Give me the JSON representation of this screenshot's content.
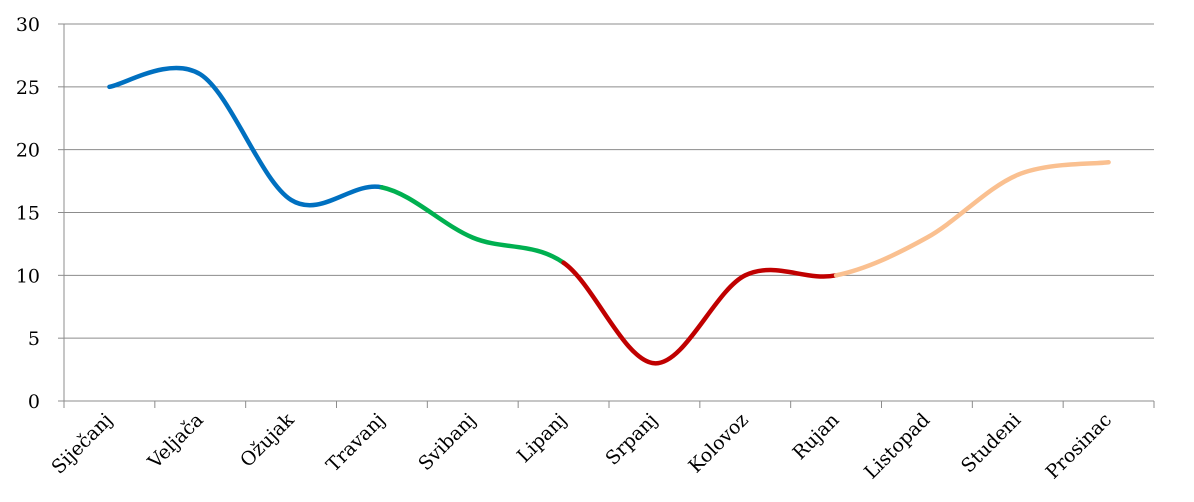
{
  "chart_data": {
    "type": "line",
    "title": "",
    "xlabel": "",
    "ylabel": "",
    "ylim": [
      0,
      30
    ],
    "yticks": [
      0,
      5,
      10,
      15,
      20,
      25,
      30
    ],
    "grid": true,
    "smooth": true,
    "categories": [
      "Siječanj",
      "Veljača",
      "Ožujak",
      "Travanj",
      "Svibanj",
      "Lipanj",
      "Srpanj",
      "Kolovoz",
      "Rujan",
      "Listopad",
      "Studeni",
      "Prosinac"
    ],
    "values": [
      25,
      26,
      16,
      17,
      13,
      11,
      3,
      10,
      10,
      13,
      18,
      19
    ],
    "segments": [
      {
        "from": 0,
        "to": 3,
        "color": "#0070c0"
      },
      {
        "from": 3,
        "to": 5,
        "color": "#00b050"
      },
      {
        "from": 5,
        "to": 8,
        "color": "#c00000"
      },
      {
        "from": 8,
        "to": 11,
        "color": "#fac090"
      }
    ]
  }
}
